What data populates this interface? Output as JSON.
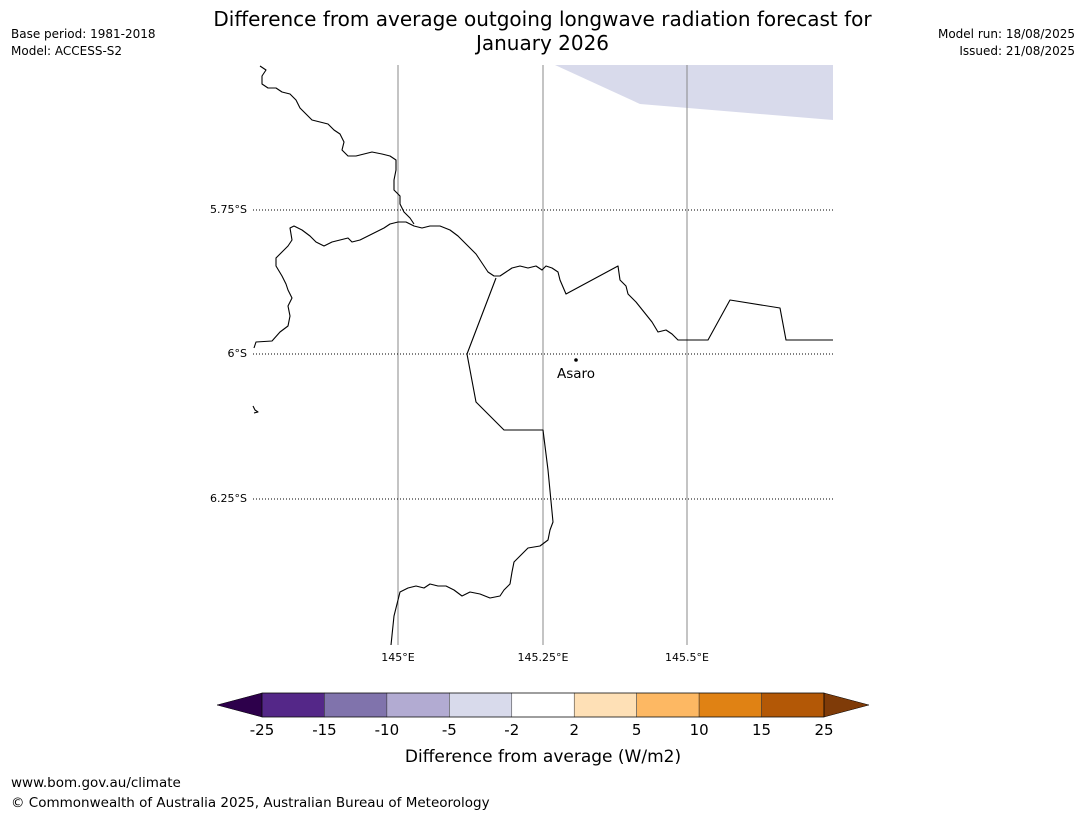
{
  "header": {
    "title_line1": "Difference from average outgoing longwave radiation forecast for",
    "title_line2": "January 2026",
    "base_period": "Base period: 1981-2018",
    "model": "Model: ACCESS-S2",
    "model_run": "Model run: 18/08/2025",
    "issued": "Issued: 21/08/2025"
  },
  "map": {
    "lat_labels": [
      "5.75°S",
      "6°S",
      "6.25°S"
    ],
    "lon_labels": [
      "145°E",
      "145.25°E",
      "145.5°E"
    ],
    "place": {
      "name": "Asaro"
    }
  },
  "colorbar": {
    "title": "Difference from average (W/m2)",
    "ticks": [
      "-25",
      "-15",
      "-10",
      "-5",
      "-2",
      "2",
      "5",
      "10",
      "15",
      "25"
    ],
    "under_color": "#2d004b",
    "over_color": "#7f3b08",
    "bin_colors": [
      "#542788",
      "#8073ac",
      "#b2abd2",
      "#d8daeb",
      "#ffffff",
      "#fee0b6",
      "#fdb863",
      "#e08214",
      "#b35806"
    ]
  },
  "footer": {
    "url": "www.bom.gov.au/climate",
    "copyright": "© Commonwealth of Australia 2025, Australian Bureau of Meteorology"
  }
}
